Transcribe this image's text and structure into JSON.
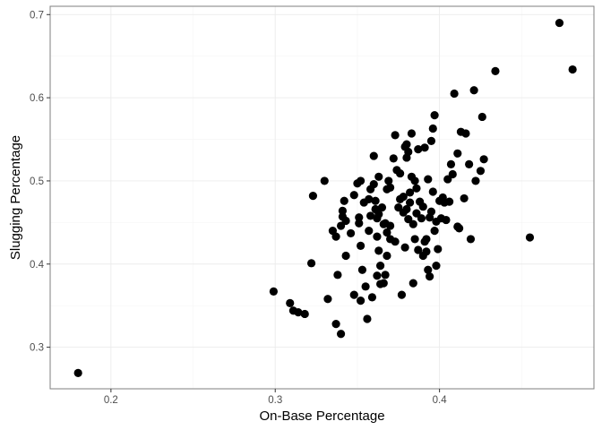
{
  "chart_data": {
    "type": "scatter",
    "title": "",
    "xlabel": "On-Base Percentage",
    "ylabel": "Slugging Percentage",
    "xlim": [
      0.163,
      0.494
    ],
    "ylim": [
      0.25,
      0.71
    ],
    "x_ticks": [
      0.2,
      0.3,
      0.4
    ],
    "x_tick_labels": [
      "0.2",
      "0.3",
      "0.4"
    ],
    "x_minor_ticks": [
      0.25,
      0.35,
      0.45
    ],
    "y_ticks": [
      0.3,
      0.4,
      0.5,
      0.6,
      0.7
    ],
    "y_tick_labels": [
      "0.3",
      "0.4",
      "0.5",
      "0.6",
      "0.7"
    ],
    "y_minor_ticks": [
      0.35,
      0.45,
      0.55,
      0.65
    ],
    "grid": true,
    "theme": "black-and-white",
    "point_color": "#000000",
    "points": [
      [
        0.18,
        0.269
      ],
      [
        0.299,
        0.367
      ],
      [
        0.309,
        0.353
      ],
      [
        0.311,
        0.344
      ],
      [
        0.314,
        0.342
      ],
      [
        0.318,
        0.34
      ],
      [
        0.322,
        0.401
      ],
      [
        0.323,
        0.482
      ],
      [
        0.33,
        0.5
      ],
      [
        0.332,
        0.358
      ],
      [
        0.335,
        0.44
      ],
      [
        0.337,
        0.433
      ],
      [
        0.337,
        0.328
      ],
      [
        0.338,
        0.387
      ],
      [
        0.34,
        0.316
      ],
      [
        0.34,
        0.446
      ],
      [
        0.341,
        0.457
      ],
      [
        0.341,
        0.464
      ],
      [
        0.342,
        0.476
      ],
      [
        0.343,
        0.41
      ],
      [
        0.343,
        0.452
      ],
      [
        0.346,
        0.437
      ],
      [
        0.348,
        0.483
      ],
      [
        0.348,
        0.363
      ],
      [
        0.35,
        0.497
      ],
      [
        0.351,
        0.456
      ],
      [
        0.351,
        0.449
      ],
      [
        0.352,
        0.5
      ],
      [
        0.352,
        0.422
      ],
      [
        0.352,
        0.356
      ],
      [
        0.353,
        0.393
      ],
      [
        0.354,
        0.474
      ],
      [
        0.355,
        0.373
      ],
      [
        0.356,
        0.334
      ],
      [
        0.357,
        0.44
      ],
      [
        0.357,
        0.478
      ],
      [
        0.358,
        0.49
      ],
      [
        0.358,
        0.458
      ],
      [
        0.359,
        0.36
      ],
      [
        0.36,
        0.53
      ],
      [
        0.36,
        0.496
      ],
      [
        0.361,
        0.476
      ],
      [
        0.361,
        0.466
      ],
      [
        0.362,
        0.455
      ],
      [
        0.362,
        0.433
      ],
      [
        0.362,
        0.386
      ],
      [
        0.363,
        0.505
      ],
      [
        0.363,
        0.46
      ],
      [
        0.363,
        0.416
      ],
      [
        0.364,
        0.398
      ],
      [
        0.364,
        0.376
      ],
      [
        0.365,
        0.468
      ],
      [
        0.366,
        0.448
      ],
      [
        0.366,
        0.377
      ],
      [
        0.367,
        0.449
      ],
      [
        0.367,
        0.387
      ],
      [
        0.368,
        0.438
      ],
      [
        0.368,
        0.41
      ],
      [
        0.368,
        0.49
      ],
      [
        0.369,
        0.5
      ],
      [
        0.37,
        0.43
      ],
      [
        0.37,
        0.446
      ],
      [
        0.37,
        0.492
      ],
      [
        0.372,
        0.527
      ],
      [
        0.373,
        0.427
      ],
      [
        0.373,
        0.555
      ],
      [
        0.374,
        0.513
      ],
      [
        0.375,
        0.468
      ],
      [
        0.376,
        0.509
      ],
      [
        0.376,
        0.478
      ],
      [
        0.377,
        0.363
      ],
      [
        0.378,
        0.481
      ],
      [
        0.378,
        0.462
      ],
      [
        0.379,
        0.541
      ],
      [
        0.379,
        0.42
      ],
      [
        0.38,
        0.544
      ],
      [
        0.38,
        0.528
      ],
      [
        0.38,
        0.466
      ],
      [
        0.381,
        0.454
      ],
      [
        0.381,
        0.535
      ],
      [
        0.382,
        0.486
      ],
      [
        0.382,
        0.474
      ],
      [
        0.383,
        0.557
      ],
      [
        0.383,
        0.505
      ],
      [
        0.384,
        0.448
      ],
      [
        0.384,
        0.377
      ],
      [
        0.385,
        0.5
      ],
      [
        0.385,
        0.43
      ],
      [
        0.386,
        0.461
      ],
      [
        0.386,
        0.491
      ],
      [
        0.387,
        0.417
      ],
      [
        0.387,
        0.538
      ],
      [
        0.388,
        0.475
      ],
      [
        0.389,
        0.455
      ],
      [
        0.39,
        0.469
      ],
      [
        0.39,
        0.41
      ],
      [
        0.391,
        0.427
      ],
      [
        0.391,
        0.54
      ],
      [
        0.392,
        0.43
      ],
      [
        0.392,
        0.415
      ],
      [
        0.393,
        0.502
      ],
      [
        0.393,
        0.393
      ],
      [
        0.394,
        0.456
      ],
      [
        0.394,
        0.385
      ],
      [
        0.395,
        0.548
      ],
      [
        0.395,
        0.463
      ],
      [
        0.396,
        0.563
      ],
      [
        0.396,
        0.487
      ],
      [
        0.397,
        0.44
      ],
      [
        0.397,
        0.579
      ],
      [
        0.398,
        0.398
      ],
      [
        0.398,
        0.451
      ],
      [
        0.399,
        0.418
      ],
      [
        0.4,
        0.476
      ],
      [
        0.401,
        0.455
      ],
      [
        0.402,
        0.48
      ],
      [
        0.403,
        0.474
      ],
      [
        0.404,
        0.453
      ],
      [
        0.405,
        0.502
      ],
      [
        0.406,
        0.475
      ],
      [
        0.407,
        0.52
      ],
      [
        0.408,
        0.508
      ],
      [
        0.409,
        0.605
      ],
      [
        0.411,
        0.533
      ],
      [
        0.411,
        0.445
      ],
      [
        0.412,
        0.443
      ],
      [
        0.413,
        0.559
      ],
      [
        0.415,
        0.479
      ],
      [
        0.416,
        0.557
      ],
      [
        0.418,
        0.52
      ],
      [
        0.419,
        0.43
      ],
      [
        0.421,
        0.609
      ],
      [
        0.422,
        0.5
      ],
      [
        0.425,
        0.512
      ],
      [
        0.426,
        0.577
      ],
      [
        0.427,
        0.526
      ],
      [
        0.434,
        0.632
      ],
      [
        0.455,
        0.432
      ],
      [
        0.473,
        0.69
      ],
      [
        0.481,
        0.634
      ]
    ]
  }
}
